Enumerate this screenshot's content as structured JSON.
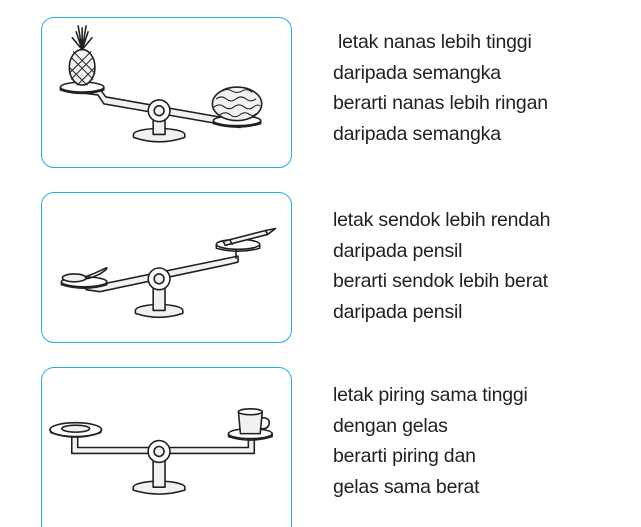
{
  "items": [
    {
      "left_object": "pineapple",
      "right_object": "watermelon",
      "icon": "pineapple-watermelon-balance-icon",
      "lines": [
        "letak nanas lebih tinggi",
        "daripada semangka",
        "berarti nanas lebih ringan",
        "daripada semangka"
      ]
    },
    {
      "left_object": "spoon",
      "right_object": "pencil",
      "icon": "spoon-pencil-balance-icon",
      "lines": [
        "letak sendok lebih rendah",
        "daripada pensil",
        "berarti sendok lebih berat",
        "daripada pensil"
      ]
    },
    {
      "left_object": "plate",
      "right_object": "glass",
      "icon": "plate-glass-balance-icon",
      "lines": [
        "letak piring sama tinggi",
        "dengan gelas",
        "berarti piring dan",
        "gelas sama berat"
      ]
    }
  ],
  "colors": {
    "frame_border": "#29abe2",
    "text": "#231f20"
  }
}
